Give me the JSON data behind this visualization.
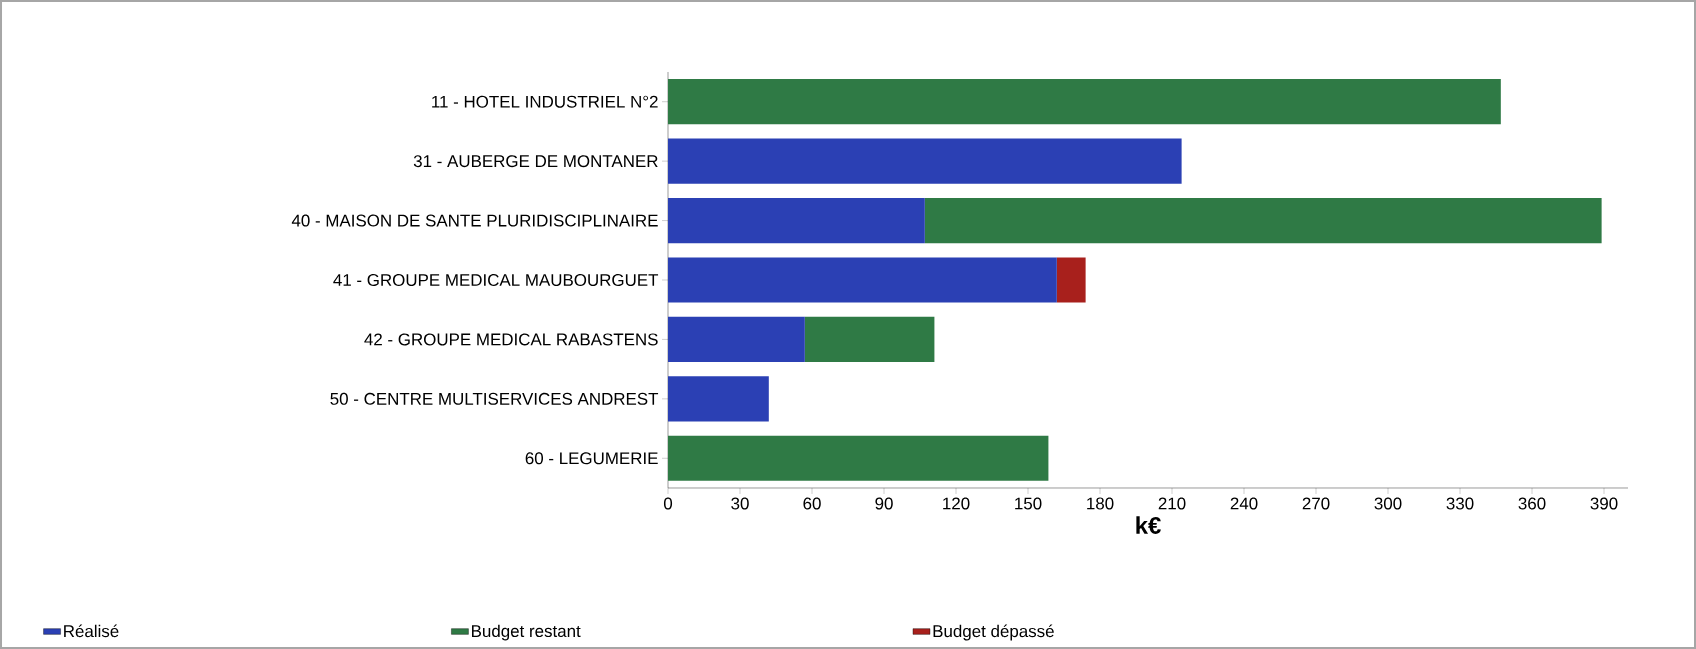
{
  "chart_data": {
    "type": "bar",
    "orientation": "horizontal",
    "stacked": true,
    "xlabel": "k€",
    "legend": "bottom",
    "categories": [
      "11 - HOTEL INDUSTRIEL N°2",
      "31 - AUBERGE DE MONTANER",
      "40 - MAISON DE SANTE PLURIDISCIPLINAIRE",
      "41 - GROUPE MEDICAL MAUBOURGUET",
      "42 - GROUPE MEDICAL RABASTENS",
      "50 - CENTRE MULTISERVICES ANDREST",
      "60 - LEGUMERIE"
    ],
    "series": [
      {
        "name": "Réalisé",
        "color": "#2b40b4",
        "values": [
          null,
          214,
          107,
          162,
          57,
          42,
          null
        ]
      },
      {
        "name": "Budget restant",
        "color": "#2f7a45",
        "values": [
          347,
          null,
          282,
          null,
          54,
          null,
          158.5
        ]
      },
      {
        "name": "Budget dépassé",
        "color": "#a8201c",
        "values": [
          null,
          null,
          null,
          12,
          null,
          null,
          null
        ]
      }
    ],
    "xlim": [
      0,
      400
    ],
    "xticks": [
      0,
      30,
      60,
      90,
      120,
      150,
      180,
      210,
      240,
      270,
      300,
      330,
      360,
      390
    ]
  }
}
